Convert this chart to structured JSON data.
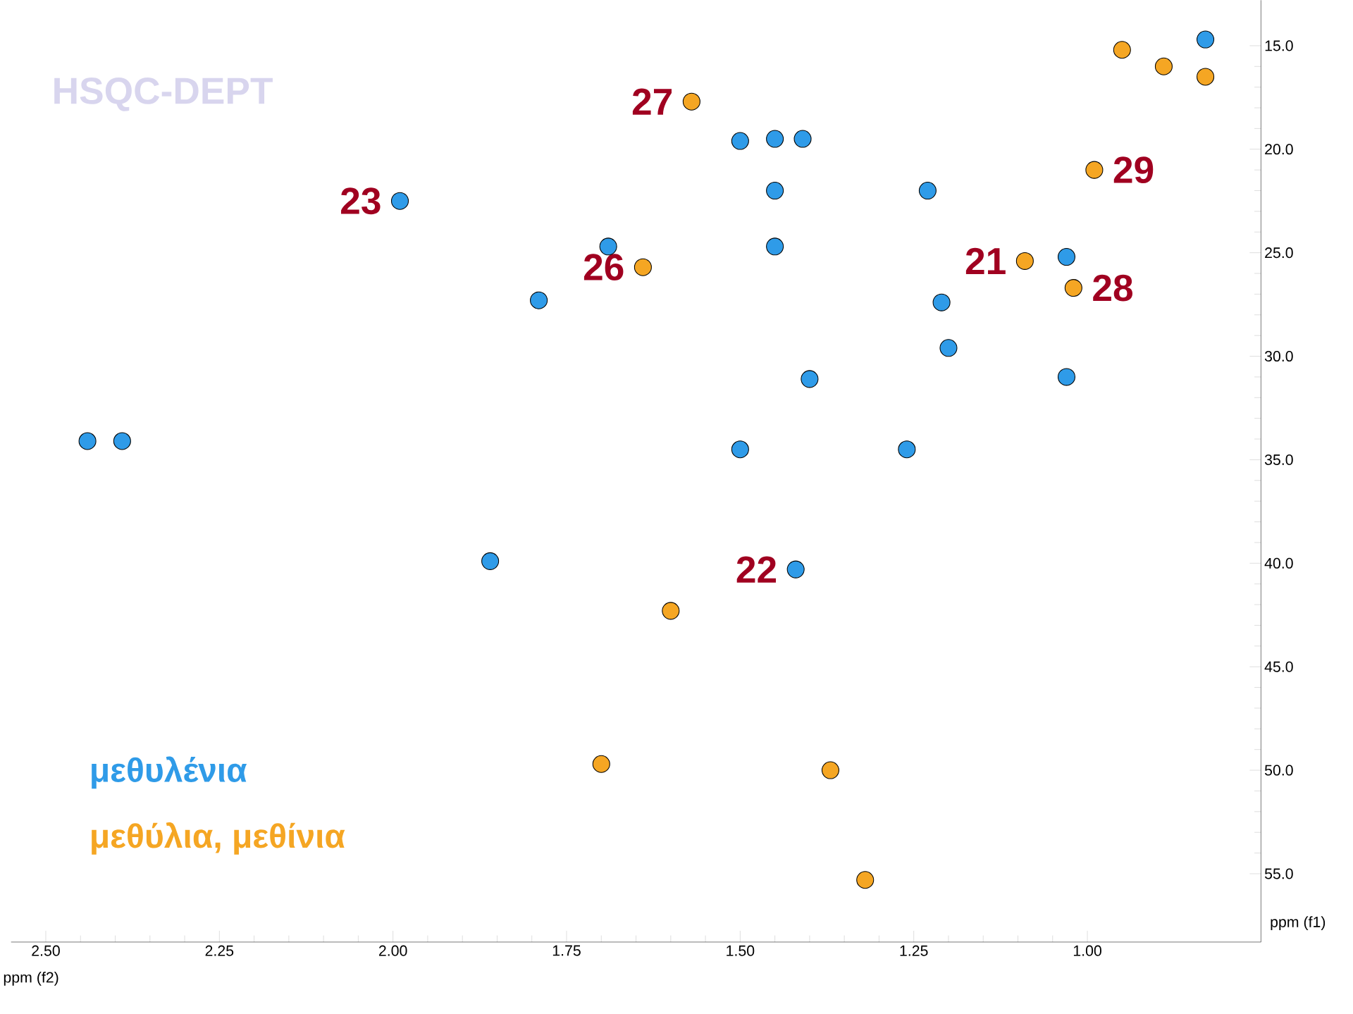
{
  "chart_data": {
    "type": "scatter",
    "title": "HSQC-DEPT",
    "xlabel": "ppm (f2)",
    "ylabel": "ppm (f1)",
    "xlim": [
      2.55,
      0.75
    ],
    "ylim": [
      58.3,
      12.8
    ],
    "xticks": [
      {
        "value": 2.5,
        "label": "2.50"
      },
      {
        "value": 2.25,
        "label": "2.25"
      },
      {
        "value": 2.0,
        "label": "2.00"
      },
      {
        "value": 1.75,
        "label": "1.75"
      },
      {
        "value": 1.5,
        "label": "1.50"
      },
      {
        "value": 1.25,
        "label": "1.25"
      },
      {
        "value": 1.0,
        "label": "1.00"
      }
    ],
    "yticks": [
      {
        "value": 15,
        "label": "15.0"
      },
      {
        "value": 20,
        "label": "20.0"
      },
      {
        "value": 25,
        "label": "25.0"
      },
      {
        "value": 30,
        "label": "30.0"
      },
      {
        "value": 35,
        "label": "35.0"
      },
      {
        "value": 40,
        "label": "40.0"
      },
      {
        "value": 45,
        "label": "45.0"
      },
      {
        "value": 50,
        "label": "50.0"
      },
      {
        "value": 55,
        "label": "55.0"
      }
    ],
    "marker": "circle",
    "legend": "bottom left",
    "series": [
      {
        "name": "μεθυλένια",
        "color": "#2f9be8",
        "x": [
          2.44,
          2.39,
          1.99,
          1.69,
          1.79,
          1.86,
          1.5,
          1.45,
          1.41,
          1.45,
          1.45,
          1.23,
          1.21,
          1.2,
          1.4,
          1.03,
          1.5,
          1.26,
          1.42,
          0.83,
          1.03
        ],
        "values": [
          34.1,
          34.1,
          22.5,
          24.7,
          27.3,
          39.9,
          19.6,
          19.5,
          19.5,
          22.0,
          24.7,
          22.0,
          27.4,
          29.6,
          31.1,
          31.0,
          34.5,
          34.5,
          40.3,
          14.7,
          25.2
        ]
      },
      {
        "name": "μεθύλια, μεθίνια",
        "color": "#f5a623",
        "x": [
          1.57,
          1.64,
          1.6,
          1.7,
          1.37,
          1.32,
          0.95,
          0.89,
          0.83,
          0.99,
          1.09,
          1.02
        ],
        "values": [
          17.7,
          25.7,
          42.3,
          49.7,
          50.0,
          55.3,
          15.2,
          16.0,
          16.5,
          21.0,
          25.4,
          26.7
        ]
      }
    ],
    "annotations": [
      {
        "text": "27",
        "x": 1.57,
        "y": 17.7
      },
      {
        "text": "23",
        "x": 1.99,
        "y": 22.5
      },
      {
        "text": "29",
        "x": 0.99,
        "y": 21.0
      },
      {
        "text": "21",
        "x": 1.09,
        "y": 25.4
      },
      {
        "text": "28",
        "x": 1.02,
        "y": 26.7
      },
      {
        "text": "26",
        "x": 1.64,
        "y": 25.7
      },
      {
        "text": "22",
        "x": 1.42,
        "y": 40.3
      }
    ]
  }
}
